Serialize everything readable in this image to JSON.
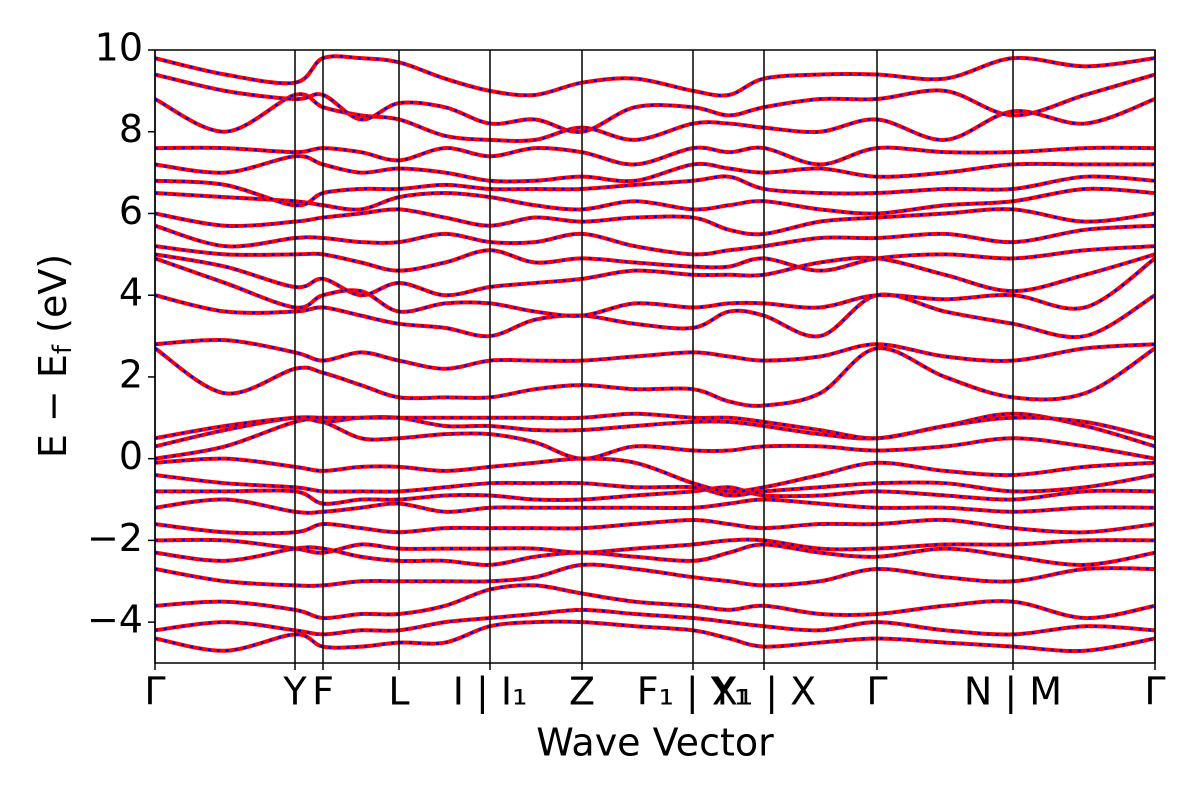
{
  "chart_data": {
    "type": "line",
    "xlabel": "Wave Vector",
    "ylabel": {
      "main": "E − E",
      "sub": "f",
      "unit": "(eV)"
    },
    "color": "#ff0000",
    "overlay_color": "#0000ff",
    "xlim": [
      0,
      1
    ],
    "ylim": [
      -5,
      10
    ],
    "yticks": [
      {
        "value": -4,
        "label": "−4"
      },
      {
        "value": -2,
        "label": "−2"
      },
      0,
      2,
      4,
      6,
      8,
      10
    ],
    "xticks": [
      {
        "value": 0,
        "label": "Γ"
      },
      {
        "value": 0.14,
        "label": "Y"
      },
      {
        "value": 0.168,
        "label": "F"
      },
      {
        "value": 0.244,
        "label": "L"
      },
      {
        "value": 0.335,
        "label": "I | I₁"
      },
      {
        "value": 0.427,
        "label": "Z"
      },
      {
        "value": 0.538,
        "label": "F₁ | Y₁"
      },
      {
        "value": 0.609,
        "label": "X₁ | X"
      },
      {
        "value": 0.722,
        "label": "Γ"
      },
      {
        "value": 0.858,
        "label": "N | M"
      },
      {
        "value": 1,
        "label": "Γ"
      }
    ],
    "x": [
      0,
      0.07,
      0.14,
      0.168,
      0.206,
      0.244,
      0.29,
      0.335,
      0.38,
      0.427,
      0.48,
      0.538,
      0.574,
      0.609,
      0.665,
      0.722,
      0.79,
      0.858,
      0.93,
      1.0
    ],
    "series": [
      {
        "values": [
          -4.4,
          -4.7,
          -4.3,
          -4.6,
          -4.6,
          -4.5,
          -4.5,
          -4.1,
          -4.0,
          -4.0,
          -4.1,
          -4.2,
          -4.4,
          -4.6,
          -4.5,
          -4.4,
          -4.5,
          -4.6,
          -4.7,
          -4.4
        ]
      },
      {
        "values": [
          -4.2,
          -4.0,
          -4.2,
          -4.3,
          -4.2,
          -4.2,
          -4.0,
          -3.9,
          -3.8,
          -3.7,
          -3.8,
          -3.9,
          -4.0,
          -4.1,
          -4.2,
          -4.0,
          -4.2,
          -4.3,
          -4.1,
          -4.2
        ]
      },
      {
        "values": [
          -3.6,
          -3.5,
          -3.7,
          -3.9,
          -3.8,
          -3.8,
          -3.6,
          -3.2,
          -3.1,
          -3.3,
          -3.5,
          -3.6,
          -3.7,
          -3.6,
          -3.8,
          -3.8,
          -3.6,
          -3.5,
          -3.9,
          -3.6
        ]
      },
      {
        "values": [
          -2.7,
          -3.0,
          -3.1,
          -3.1,
          -3.0,
          -3.0,
          -3.0,
          -3.0,
          -2.9,
          -2.6,
          -2.7,
          -2.9,
          -3.0,
          -3.1,
          -3.0,
          -2.7,
          -2.9,
          -3.0,
          -2.7,
          -2.7
        ]
      },
      {
        "values": [
          -2.3,
          -2.5,
          -2.2,
          -2.2,
          -2.4,
          -2.5,
          -2.5,
          -2.6,
          -2.4,
          -2.3,
          -2.4,
          -2.5,
          -2.3,
          -2.1,
          -2.3,
          -2.4,
          -2.2,
          -2.4,
          -2.6,
          -2.3
        ]
      },
      {
        "values": [
          -2.0,
          -2.0,
          -2.2,
          -2.3,
          -2.1,
          -2.2,
          -2.2,
          -2.2,
          -2.2,
          -2.3,
          -2.2,
          -2.1,
          -2.0,
          -2.0,
          -2.2,
          -2.2,
          -2.1,
          -2.1,
          -2.0,
          -2.0
        ]
      },
      {
        "values": [
          -1.6,
          -1.8,
          -1.8,
          -1.6,
          -1.7,
          -1.8,
          -1.7,
          -1.7,
          -1.7,
          -1.7,
          -1.6,
          -1.5,
          -1.6,
          -1.7,
          -1.6,
          -1.6,
          -1.5,
          -1.7,
          -1.8,
          -1.6
        ]
      },
      {
        "values": [
          -1.2,
          -1.0,
          -1.3,
          -1.3,
          -1.2,
          -1.1,
          -1.3,
          -1.2,
          -1.2,
          -1.2,
          -1.2,
          -1.2,
          -1.1,
          -1.0,
          -1.1,
          -1.2,
          -1.2,
          -1.3,
          -1.2,
          -1.2
        ]
      },
      {
        "values": [
          -0.8,
          -0.8,
          -0.8,
          -1.1,
          -1.0,
          -1.0,
          -0.9,
          -0.9,
          -1.0,
          -1.0,
          -0.9,
          -0.8,
          -0.7,
          -0.9,
          -0.9,
          -0.8,
          -0.9,
          -1.0,
          -0.8,
          -0.8
        ]
      },
      {
        "values": [
          -0.4,
          -0.6,
          -0.7,
          -0.8,
          -0.8,
          -0.8,
          -0.7,
          -0.6,
          -0.6,
          -0.6,
          -0.7,
          -0.7,
          -0.9,
          -0.8,
          -0.7,
          -0.6,
          -0.6,
          -0.8,
          -0.7,
          -0.4
        ]
      },
      {
        "values": [
          -0.1,
          0.0,
          -0.2,
          -0.3,
          -0.2,
          -0.2,
          -0.3,
          -0.2,
          -0.1,
          0.0,
          -0.1,
          -0.6,
          -0.8,
          -0.7,
          -0.4,
          -0.1,
          -0.3,
          -0.4,
          -0.2,
          -0.1
        ]
      },
      {
        "values": [
          0.0,
          0.3,
          0.9,
          0.9,
          0.5,
          0.5,
          0.6,
          0.6,
          0.4,
          0.0,
          0.3,
          0.2,
          0.2,
          0.3,
          0.3,
          0.2,
          0.3,
          0.5,
          0.3,
          0.0
        ]
      },
      {
        "values": [
          0.3,
          0.7,
          1.0,
          0.9,
          1.0,
          1.0,
          0.8,
          0.8,
          0.7,
          0.7,
          0.8,
          0.9,
          0.9,
          0.8,
          0.6,
          0.5,
          0.8,
          1.1,
          0.8,
          0.3
        ]
      },
      {
        "values": [
          0.5,
          0.8,
          1.0,
          1.0,
          1.0,
          1.0,
          1.0,
          1.0,
          1.0,
          1.0,
          1.1,
          1.0,
          1.0,
          0.9,
          0.7,
          0.5,
          0.8,
          1.0,
          0.9,
          0.5
        ]
      },
      {
        "values": [
          2.7,
          1.6,
          2.2,
          2.1,
          1.8,
          1.5,
          1.5,
          1.5,
          1.7,
          1.8,
          1.7,
          1.7,
          1.4,
          1.3,
          1.6,
          2.7,
          2.0,
          1.5,
          1.6,
          2.7
        ]
      },
      {
        "values": [
          2.8,
          2.9,
          2.6,
          2.4,
          2.6,
          2.4,
          2.2,
          2.4,
          2.4,
          2.4,
          2.5,
          2.6,
          2.5,
          2.4,
          2.5,
          2.8,
          2.5,
          2.4,
          2.7,
          2.8
        ]
      },
      {
        "values": [
          4.0,
          3.6,
          3.6,
          3.7,
          3.5,
          3.3,
          3.2,
          3.0,
          3.4,
          3.5,
          3.3,
          3.2,
          3.6,
          3.5,
          3.0,
          4.0,
          3.6,
          3.3,
          3.0,
          4.0
        ]
      },
      {
        "values": [
          4.9,
          4.3,
          3.7,
          4.0,
          4.1,
          3.6,
          3.8,
          3.8,
          3.6,
          3.5,
          3.8,
          3.7,
          3.8,
          3.8,
          3.7,
          4.0,
          3.9,
          4.0,
          3.7,
          4.9
        ]
      },
      {
        "values": [
          5.0,
          4.7,
          4.2,
          4.4,
          4.0,
          4.3,
          4.0,
          4.2,
          4.3,
          4.4,
          4.6,
          4.5,
          4.5,
          4.5,
          4.8,
          4.9,
          4.5,
          4.1,
          4.5,
          5.0
        ]
      },
      {
        "values": [
          5.2,
          5.0,
          5.0,
          5.0,
          4.8,
          4.6,
          4.8,
          5.1,
          4.8,
          4.9,
          4.8,
          4.7,
          4.7,
          4.9,
          4.6,
          4.9,
          5.0,
          4.9,
          5.1,
          5.2
        ]
      },
      {
        "values": [
          5.7,
          5.2,
          5.4,
          5.4,
          5.3,
          5.3,
          5.5,
          5.3,
          5.3,
          5.5,
          5.2,
          5.0,
          5.1,
          5.2,
          5.4,
          5.4,
          5.5,
          5.3,
          5.6,
          5.7
        ]
      },
      {
        "values": [
          6.0,
          5.7,
          5.8,
          5.9,
          6.0,
          6.1,
          5.9,
          5.7,
          5.9,
          5.8,
          5.9,
          5.9,
          5.6,
          5.5,
          5.8,
          5.9,
          6.0,
          6.1,
          5.8,
          6.0
        ]
      },
      {
        "values": [
          6.5,
          6.4,
          6.3,
          6.2,
          6.1,
          6.4,
          6.5,
          6.4,
          6.2,
          6.1,
          6.3,
          6.1,
          6.2,
          6.3,
          6.1,
          6.0,
          6.2,
          6.3,
          6.6,
          6.5
        ]
      },
      {
        "values": [
          6.8,
          6.7,
          6.2,
          6.5,
          6.6,
          6.6,
          6.7,
          6.6,
          6.6,
          6.6,
          6.7,
          6.8,
          6.9,
          6.6,
          6.5,
          6.5,
          6.6,
          6.6,
          6.9,
          6.8
        ]
      },
      {
        "values": [
          7.2,
          7.0,
          7.4,
          7.2,
          7.0,
          7.1,
          7.0,
          6.8,
          6.8,
          6.9,
          6.8,
          7.2,
          7.1,
          7.0,
          7.1,
          6.9,
          7.0,
          7.2,
          7.2,
          7.2
        ]
      },
      {
        "values": [
          7.6,
          7.6,
          7.5,
          7.6,
          7.5,
          7.3,
          7.6,
          7.4,
          7.6,
          7.5,
          7.2,
          7.6,
          7.5,
          7.6,
          7.2,
          7.6,
          7.5,
          7.5,
          7.6,
          7.6
        ]
      },
      {
        "values": [
          8.8,
          8.0,
          8.9,
          8.6,
          8.4,
          8.3,
          7.9,
          7.8,
          7.8,
          8.1,
          7.8,
          8.2,
          8.2,
          8.1,
          8.0,
          8.3,
          7.8,
          8.5,
          8.2,
          8.8
        ]
      },
      {
        "values": [
          9.4,
          9.0,
          8.8,
          8.9,
          8.3,
          8.7,
          8.6,
          8.2,
          8.3,
          8.0,
          8.6,
          8.6,
          8.4,
          8.6,
          8.8,
          8.8,
          9.0,
          8.4,
          8.9,
          9.4
        ]
      },
      {
        "values": [
          9.8,
          9.4,
          9.2,
          9.8,
          9.8,
          9.7,
          9.3,
          9.0,
          8.9,
          9.2,
          9.3,
          9.0,
          8.9,
          9.3,
          9.4,
          9.4,
          9.3,
          9.8,
          9.6,
          9.8
        ]
      }
    ]
  }
}
